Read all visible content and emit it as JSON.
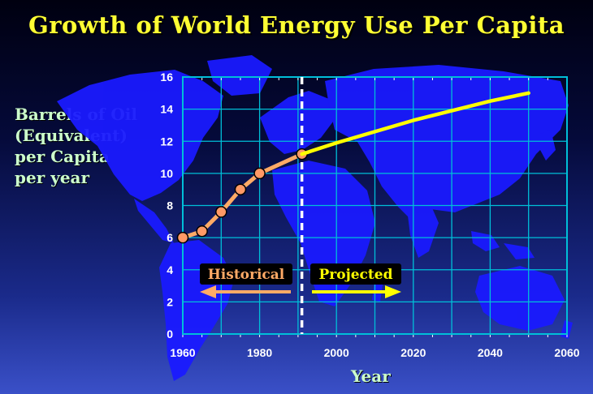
{
  "title": "Growth of World Energy Use Per Capita",
  "ylabel": "Barrels of Oil\n(Equivalent)\nper Capita\nper year",
  "xlabel": "Year",
  "legend": {
    "historical": "Historical",
    "projected": "Projected"
  },
  "colors": {
    "historical": "#ffaa66",
    "projected": "#ffff00",
    "grid": "#00bfd8",
    "map": "#1a1aff",
    "title": "#ffff33",
    "label": "#ccffcc"
  },
  "chart_data": {
    "type": "line",
    "title": "Growth of World Energy Use Per Capita",
    "xlabel": "Year",
    "ylabel": "Barrels of Oil (Equivalent) per Capita per year",
    "xlim": [
      1960,
      2060
    ],
    "ylim": [
      0,
      16
    ],
    "xticks": [
      1960,
      1980,
      2000,
      2020,
      2040,
      2060
    ],
    "yticks": [
      0,
      2,
      4,
      6,
      8,
      10,
      12,
      14,
      16
    ],
    "grid": true,
    "divider_year": 1991,
    "series": [
      {
        "name": "Historical",
        "x": [
          1960,
          1965,
          1970,
          1975,
          1980,
          1991
        ],
        "y": [
          6.0,
          6.4,
          7.6,
          9.0,
          10.0,
          11.2
        ],
        "markers": true
      },
      {
        "name": "Projected",
        "x": [
          1991,
          2000,
          2010,
          2020,
          2030,
          2040,
          2050
        ],
        "y": [
          11.2,
          11.9,
          12.6,
          13.3,
          13.9,
          14.5,
          15.0
        ],
        "markers": false
      }
    ]
  }
}
